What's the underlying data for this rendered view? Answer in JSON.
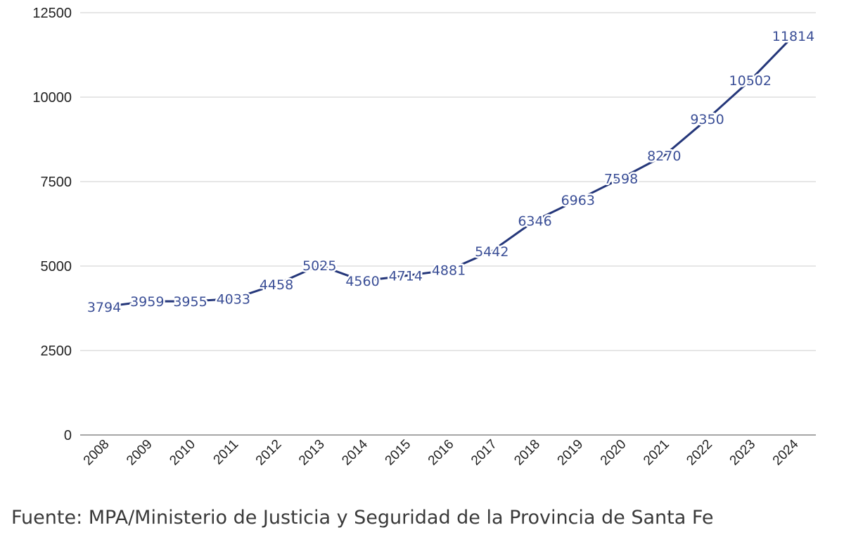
{
  "chart_data": {
    "type": "line",
    "title": "",
    "xlabel": "",
    "ylabel": "",
    "categories": [
      "2008",
      "2009",
      "2010",
      "2011",
      "2012",
      "2013",
      "2014",
      "2015",
      "2016",
      "2017",
      "2018",
      "2019",
      "2020",
      "2021",
      "2022",
      "2023",
      "2024"
    ],
    "series": [
      {
        "values": [
          3794,
          3959,
          3955,
          4033,
          4458,
          5025,
          4560,
          4714,
          4881,
          5442,
          6346,
          6963,
          7598,
          8270,
          9350,
          10502,
          11814
        ],
        "color": "#25377a"
      }
    ],
    "y_ticks": [
      "0",
      "2500",
      "5000",
      "7500",
      "10000",
      "12500"
    ],
    "ylim": [
      0,
      12500
    ],
    "grid": "horizontal",
    "legend": "none",
    "data_labels": true,
    "x_tick_rotation": "-45deg",
    "colors": {
      "line": "#25377a",
      "label": "#3a4e96",
      "grid": "#d6d6d6",
      "baseline": "#888888"
    }
  },
  "source": "Fuente: MPA/Ministerio de Justicia y Seguridad de la Provincia de Santa Fe"
}
